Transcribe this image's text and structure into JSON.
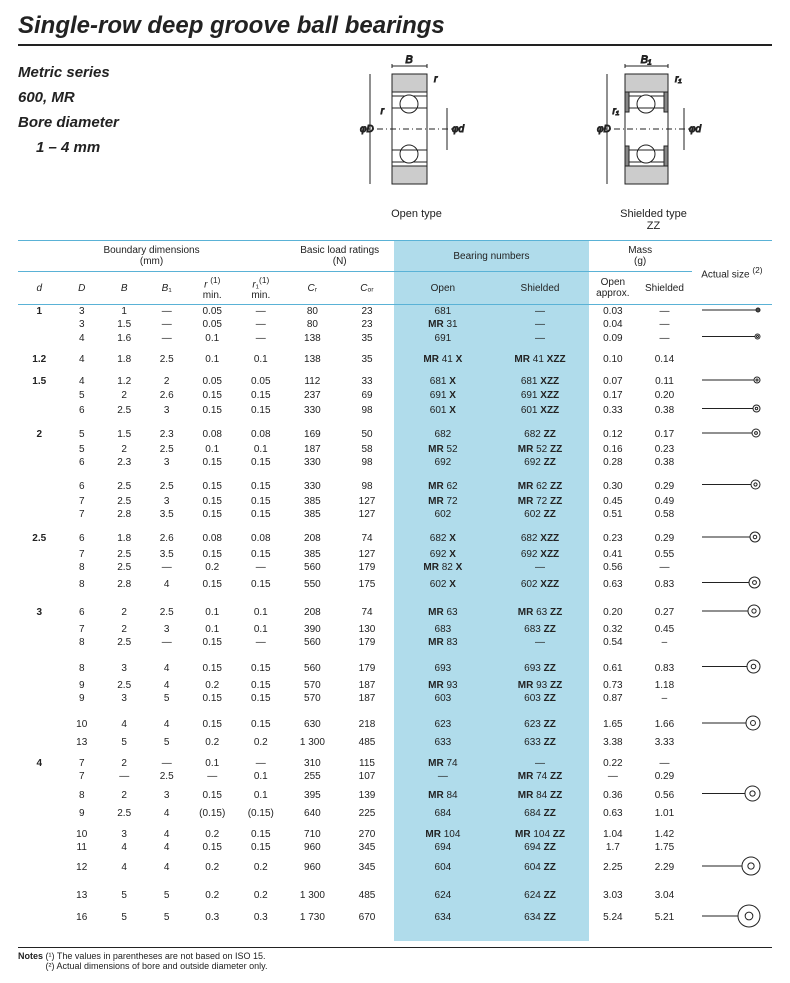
{
  "title": "Single-row deep groove ball bearings",
  "series": {
    "l1": "Metric series",
    "l2": "600, MR",
    "l3": "Bore diameter",
    "l4": "1 – 4 mm"
  },
  "diagrams": {
    "open": {
      "caption": "Open type",
      "B": "B",
      "r": "r",
      "phiD": "φD",
      "phid": "φd"
    },
    "shielded": {
      "caption1": "Shielded type",
      "caption2": "ZZ",
      "B1": "B₁",
      "r1": "r₁",
      "phiD": "φD",
      "phid": "φd"
    }
  },
  "headers": {
    "boundary": "Boundary dimensions\n(mm)",
    "load": "Basic load ratings\n(N)",
    "bearing": "Bearing numbers",
    "mass": "Mass\n(g)",
    "actual": "Actual size (²)",
    "d": "d",
    "D": "D",
    "B": "B",
    "B1": "B₁",
    "rmin": "r (¹)\nmin.",
    "r1min": "r₁(¹)\nmin.",
    "Cr": "Cᵣ",
    "Cor": "Cₒᵣ",
    "open": "Open",
    "shielded": "Shielded",
    "mopen": "Open\napprox.",
    "mshielded": "Shielded"
  },
  "groups": [
    {
      "d": "1",
      "rows": [
        {
          "D": "3",
          "B": "1",
          "B1": "—",
          "r": "0.05",
          "r1": "—",
          "Cr": "80",
          "Cor": "23",
          "open": "681",
          "sh": "—",
          "mo": "0.03",
          "ms": "—",
          "size": 4
        },
        {
          "D": "3",
          "B": "1.5",
          "B1": "—",
          "r": "0.05",
          "r1": "—",
          "Cr": "80",
          "Cor": "23",
          "open": "MR  31",
          "sh": "—",
          "mo": "0.04",
          "ms": "—",
          "size": 0
        },
        {
          "D": "4",
          "B": "1.6",
          "B1": "—",
          "r": "0.1",
          "r1": "—",
          "Cr": "138",
          "Cor": "35",
          "open": "691",
          "sh": "—",
          "mo": "0.09",
          "ms": "—",
          "size": 5
        }
      ]
    },
    {
      "d": "1.2",
      "rows": [
        {
          "D": "4",
          "B": "1.8",
          "B1": "2.5",
          "r": "0.1",
          "r1": "0.1",
          "Cr": "138",
          "Cor": "35",
          "open": "MR  41 X",
          "sh": "MR  41 XZZ",
          "mo": "0.10",
          "ms": "0.14",
          "size": 0
        }
      ]
    },
    {
      "d": "1.5",
      "rows": [
        {
          "D": "4",
          "B": "1.2",
          "B1": "2",
          "r": "0.05",
          "r1": "0.05",
          "Cr": "112",
          "Cor": "33",
          "open": "681 X",
          "sh": "681 XZZ",
          "mo": "0.07",
          "ms": "0.11",
          "size": 6
        },
        {
          "D": "5",
          "B": "2",
          "B1": "2.6",
          "r": "0.15",
          "r1": "0.15",
          "Cr": "237",
          "Cor": "69",
          "open": "691 X",
          "sh": "691 XZZ",
          "mo": "0.17",
          "ms": "0.20",
          "size": 0
        },
        {
          "D": "6",
          "B": "2.5",
          "B1": "3",
          "r": "0.15",
          "r1": "0.15",
          "Cr": "330",
          "Cor": "98",
          "open": "601 X",
          "sh": "601 XZZ",
          "mo": "0.33",
          "ms": "0.38",
          "size": 7
        }
      ]
    },
    {
      "d": "2",
      "rows": [
        {
          "D": "5",
          "B": "1.5",
          "B1": "2.3",
          "r": "0.08",
          "r1": "0.08",
          "Cr": "169",
          "Cor": "50",
          "open": "682",
          "sh": "682 ZZ",
          "mo": "0.12",
          "ms": "0.17",
          "size": 8
        },
        {
          "D": "5",
          "B": "2",
          "B1": "2.5",
          "r": "0.1",
          "r1": "0.1",
          "Cr": "187",
          "Cor": "58",
          "open": "MR  52",
          "sh": "MR  52  ZZ",
          "mo": "0.16",
          "ms": "0.23",
          "size": 0
        },
        {
          "D": "6",
          "B": "2.3",
          "B1": "3",
          "r": "0.15",
          "r1": "0.15",
          "Cr": "330",
          "Cor": "98",
          "open": "692",
          "sh": "692 ZZ",
          "mo": "0.28",
          "ms": "0.38",
          "size": 0
        }
      ]
    },
    {
      "d": "",
      "rows": [
        {
          "D": "6",
          "B": "2.5",
          "B1": "2.5",
          "r": "0.15",
          "r1": "0.15",
          "Cr": "330",
          "Cor": "98",
          "open": "MR  62",
          "sh": "MR  62 ZZ",
          "mo": "0.30",
          "ms": "0.29",
          "size": 9
        },
        {
          "D": "7",
          "B": "2.5",
          "B1": "3",
          "r": "0.15",
          "r1": "0.15",
          "Cr": "385",
          "Cor": "127",
          "open": "MR  72",
          "sh": "MR  72 ZZ",
          "mo": "0.45",
          "ms": "0.49",
          "size": 0
        },
        {
          "D": "7",
          "B": "2.8",
          "B1": "3.5",
          "r": "0.15",
          "r1": "0.15",
          "Cr": "385",
          "Cor": "127",
          "open": "602",
          "sh": "602 ZZ",
          "mo": "0.51",
          "ms": "0.58",
          "size": 0
        }
      ]
    },
    {
      "d": "2.5",
      "rows": [
        {
          "D": "6",
          "B": "1.8",
          "B1": "2.6",
          "r": "0.08",
          "r1": "0.08",
          "Cr": "208",
          "Cor": "74",
          "open": "682 X",
          "sh": "682 XZZ",
          "mo": "0.23",
          "ms": "0.29",
          "size": 10
        },
        {
          "D": "7",
          "B": "2.5",
          "B1": "3.5",
          "r": "0.15",
          "r1": "0.15",
          "Cr": "385",
          "Cor": "127",
          "open": "692 X",
          "sh": "692 XZZ",
          "mo": "0.41",
          "ms": "0.55",
          "size": 0
        },
        {
          "D": "8",
          "B": "2.5",
          "B1": "—",
          "r": "0.2",
          "r1": "—",
          "Cr": "560",
          "Cor": "179",
          "open": "MR  82 X",
          "sh": "—",
          "mo": "0.56",
          "ms": "—",
          "size": 0
        },
        {
          "D": "8",
          "B": "2.8",
          "B1": "4",
          "r": "0.15",
          "r1": "0.15",
          "Cr": "550",
          "Cor": "175",
          "open": "602 X",
          "sh": "602 XZZ",
          "mo": "0.63",
          "ms": "0.83",
          "size": 11
        }
      ]
    },
    {
      "d": "3",
      "rows": [
        {
          "D": "6",
          "B": "2",
          "B1": "2.5",
          "r": "0.1",
          "r1": "0.1",
          "Cr": "208",
          "Cor": "74",
          "open": "MR  63",
          "sh": "MR  63 ZZ",
          "mo": "0.20",
          "ms": "0.27",
          "size": 12
        },
        {
          "D": "7",
          "B": "2",
          "B1": "3",
          "r": "0.1",
          "r1": "0.1",
          "Cr": "390",
          "Cor": "130",
          "open": "683",
          "sh": "683  ZZ",
          "mo": "0.32",
          "ms": "0.45",
          "size": 0
        },
        {
          "D": "8",
          "B": "2.5",
          "B1": "—",
          "r": "0.15",
          "r1": "—",
          "Cr": "560",
          "Cor": "179",
          "open": "MR  83",
          "sh": "—",
          "mo": "0.54",
          "ms": "–",
          "size": 0
        }
      ]
    },
    {
      "d": "",
      "rows": [
        {
          "D": "8",
          "B": "3",
          "B1": "4",
          "r": "0.15",
          "r1": "0.15",
          "Cr": "560",
          "Cor": "179",
          "open": "693",
          "sh": "693 ZZ",
          "mo": "0.61",
          "ms": "0.83",
          "size": 13
        },
        {
          "D": "9",
          "B": "2.5",
          "B1": "4",
          "r": "0.2",
          "r1": "0.15",
          "Cr": "570",
          "Cor": "187",
          "open": "MR  93",
          "sh": "MR  93 ZZ",
          "mo": "0.73",
          "ms": "1.18",
          "size": 0
        },
        {
          "D": "9",
          "B": "3",
          "B1": "5",
          "r": "0.15",
          "r1": "0.15",
          "Cr": "570",
          "Cor": "187",
          "open": "603",
          "sh": "603 ZZ",
          "mo": "0.87",
          "ms": "–",
          "size": 0
        }
      ]
    },
    {
      "d": "",
      "rows": [
        {
          "D": "10",
          "B": "4",
          "B1": "4",
          "r": "0.15",
          "r1": "0.15",
          "Cr": "630",
          "Cor": "218",
          "open": "623",
          "sh": "623 ZZ",
          "mo": "1.65",
          "ms": "1.66",
          "size": 14
        },
        {
          "D": "13",
          "B": "5",
          "B1": "5",
          "r": "0.2",
          "r1": "0.2",
          "Cr": "1 300",
          "Cor": "485",
          "open": "633",
          "sh": "633 ZZ",
          "mo": "3.38",
          "ms": "3.33",
          "size": 0
        }
      ]
    },
    {
      "d": "4",
      "rows": [
        {
          "D": "7",
          "B": "2",
          "B1": "—",
          "r": "0.1",
          "r1": "—",
          "Cr": "310",
          "Cor": "115",
          "open": "MR  74",
          "sh": "—",
          "mo": "0.22",
          "ms": "—",
          "size": 0
        },
        {
          "D": "7",
          "B": "—",
          "B1": "2.5",
          "r": "—",
          "r1": "0.1",
          "Cr": "255",
          "Cor": "107",
          "open": "—",
          "sh": "MR  74 ZZ",
          "mo": "—",
          "ms": "0.29",
          "size": 0
        },
        {
          "D": "8",
          "B": "2",
          "B1": "3",
          "r": "0.15",
          "r1": "0.1",
          "Cr": "395",
          "Cor": "139",
          "open": "MR  84",
          "sh": "MR  84 ZZ",
          "mo": "0.36",
          "ms": "0.56",
          "size": 15
        },
        {
          "D": "9",
          "B": "2.5",
          "B1": "4",
          "r": "(0.15)",
          "r1": "(0.15)",
          "Cr": "640",
          "Cor": "225",
          "open": "684",
          "sh": "684  ZZ",
          "mo": "0.63",
          "ms": "1.01",
          "size": 0
        }
      ]
    },
    {
      "d": "",
      "rows": [
        {
          "D": "10",
          "B": "3",
          "B1": "4",
          "r": "0.2",
          "r1": "0.15",
          "Cr": "710",
          "Cor": "270",
          "open": "MR 104",
          "sh": "MR 104  ZZ",
          "mo": "1.04",
          "ms": "1.42",
          "size": 0
        },
        {
          "D": "11",
          "B": "4",
          "B1": "4",
          "r": "0.15",
          "r1": "0.15",
          "Cr": "960",
          "Cor": "345",
          "open": "694",
          "sh": "694 ZZ",
          "mo": "1.7",
          "ms": "1.75",
          "size": 0
        },
        {
          "D": "12",
          "B": "4",
          "B1": "4",
          "r": "0.2",
          "r1": "0.2",
          "Cr": "960",
          "Cor": "345",
          "open": "604",
          "sh": "604 ZZ",
          "mo": "2.25",
          "ms": "2.29",
          "size": 18
        }
      ]
    },
    {
      "d": "",
      "rows": [
        {
          "D": "13",
          "B": "5",
          "B1": "5",
          "r": "0.2",
          "r1": "0.2",
          "Cr": "1 300",
          "Cor": "485",
          "open": "624",
          "sh": "624 ZZ",
          "mo": "3.03",
          "ms": "3.04",
          "size": 0
        },
        {
          "D": "16",
          "B": "5",
          "B1": "5",
          "r": "0.3",
          "r1": "0.3",
          "Cr": "1 730",
          "Cor": "670",
          "open": "634",
          "sh": "634 ZZ",
          "mo": "5.24",
          "ms": "5.21",
          "size": 22
        }
      ]
    }
  ],
  "notes": {
    "label": "Notes",
    "n1": "(¹)   The values in parentheses are not based on ISO 15.",
    "n2": "(²)   Actual dimensions of bore and outside diameter only."
  }
}
